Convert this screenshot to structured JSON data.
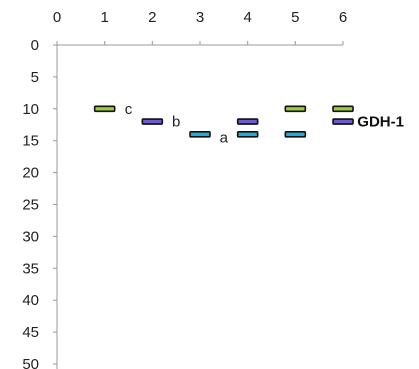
{
  "chart_data": {
    "type": "scatter",
    "marker": "horizontal-dash",
    "x_axis": {
      "position": "top",
      "ticks": [
        0,
        1,
        2,
        3,
        4,
        5,
        6
      ],
      "range": [
        0,
        6
      ]
    },
    "y_axis": {
      "reversed": true,
      "ticks": [
        0,
        5,
        10,
        15,
        20,
        25,
        30,
        35,
        40,
        45,
        50
      ],
      "range": [
        0,
        50
      ]
    },
    "grid": false,
    "bands": [
      {
        "x": 1,
        "y": 10,
        "color": "#9acd32"
      },
      {
        "x": 2,
        "y": 12,
        "color": "#6a5acd"
      },
      {
        "x": 3,
        "y": 14,
        "color": "#29a9d9"
      },
      {
        "x": 4,
        "y": 12,
        "color": "#6a5acd"
      },
      {
        "x": 4,
        "y": 14,
        "color": "#29a9d9"
      },
      {
        "x": 5,
        "y": 10,
        "color": "#9acd32"
      },
      {
        "x": 5,
        "y": 14,
        "color": "#29a9d9"
      },
      {
        "x": 6,
        "y": 10,
        "color": "#9acd32"
      },
      {
        "x": 6,
        "y": 12,
        "color": "#6a5acd"
      }
    ],
    "annotations": [
      {
        "text": "c",
        "x": 1.5,
        "y": 10
      },
      {
        "text": "b",
        "x": 2.5,
        "y": 12
      },
      {
        "text": "a",
        "x": 3.5,
        "y": 14.5
      },
      {
        "text": "GDH-1",
        "x": 6.3,
        "y": 12,
        "bold": true
      }
    ]
  }
}
